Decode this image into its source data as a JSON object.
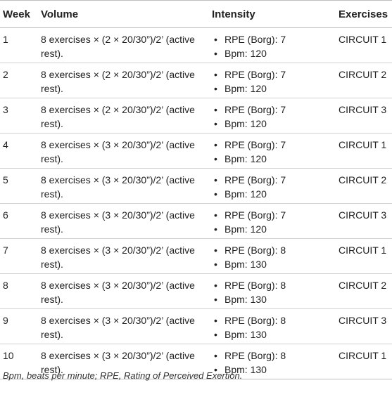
{
  "table": {
    "headers": [
      "Week",
      "Volume",
      "Intensity",
      "Exercises"
    ],
    "rows": [
      {
        "week": "1",
        "volume": "8 exercises × (2 × 20/30”)/2’ (active rest).",
        "rpe": "RPE (Borg): 7",
        "bpm": "Bpm: 120",
        "exercises": "CIRCUIT 1"
      },
      {
        "week": "2",
        "volume": "8 exercises × (2 × 20/30”)/2’ (active rest).",
        "rpe": "RPE (Borg): 7",
        "bpm": "Bpm: 120",
        "exercises": "CIRCUIT 2"
      },
      {
        "week": "3",
        "volume": "8 exercises × (2 × 20/30”)/2’ (active rest).",
        "rpe": "RPE (Borg): 7",
        "bpm": "Bpm: 120",
        "exercises": "CIRCUIT 3"
      },
      {
        "week": "4",
        "volume": "8 exercises × (3 × 20/30”)/2’ (active rest).",
        "rpe": "RPE (Borg): 7",
        "bpm": "Bpm: 120",
        "exercises": "CIRCUIT 1"
      },
      {
        "week": "5",
        "volume": "8 exercises × (3 × 20/30”)/2’ (active rest).",
        "rpe": "RPE (Borg): 7",
        "bpm": "Bpm: 120",
        "exercises": "CIRCUIT 2"
      },
      {
        "week": "6",
        "volume": "8 exercises × (3 × 20/30”)/2’ (active rest).",
        "rpe": "RPE (Borg): 7",
        "bpm": "Bpm: 120",
        "exercises": "CIRCUIT 3"
      },
      {
        "week": "7",
        "volume": "8 exercises × (3 × 20/30”)/2’ (active rest).",
        "rpe": "RPE (Borg): 8",
        "bpm": "Bpm: 130",
        "exercises": "CIRCUIT 1"
      },
      {
        "week": "8",
        "volume": "8 exercises × (3 × 20/30”)/2’ (active rest).",
        "rpe": "RPE (Borg): 8",
        "bpm": "Bpm: 130",
        "exercises": "CIRCUIT 2"
      },
      {
        "week": "9",
        "volume": "8 exercises × (3 × 20/30”)/2’ (active rest).",
        "rpe": "RPE (Borg): 8",
        "bpm": "Bpm: 130",
        "exercises": "CIRCUIT 3"
      },
      {
        "week": "10",
        "volume": "8 exercises × (3 × 20/30”)/2’ (active rest).",
        "rpe": "RPE (Borg): 8",
        "bpm": "Bpm: 130",
        "exercises": "CIRCUIT 1"
      }
    ]
  },
  "footnote": "Bpm, beats per minute; RPE, Rating of Perceived Exertion."
}
